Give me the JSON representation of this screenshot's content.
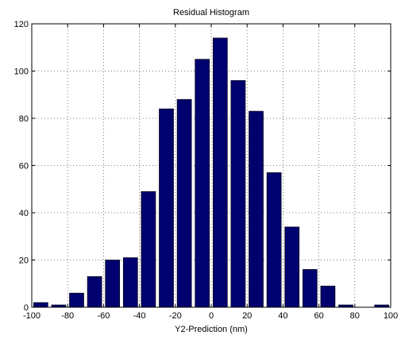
{
  "chart_data": {
    "type": "bar",
    "title": "Residual Histogram",
    "xlabel": "Y2-Prediction (nm)",
    "ylabel": "",
    "xlim": [
      -100,
      100
    ],
    "ylim": [
      0,
      120
    ],
    "grid": true,
    "bar_color": "#00006e",
    "x_ticks": [
      -100,
      -80,
      -60,
      -40,
      -20,
      0,
      20,
      40,
      60,
      80,
      100
    ],
    "y_ticks": [
      0,
      20,
      40,
      60,
      80,
      100,
      120
    ],
    "x": [
      -95,
      -85,
      -75,
      -65,
      -55,
      -45,
      -35,
      -25,
      -15,
      -5,
      5,
      15,
      25,
      35,
      45,
      55,
      65,
      75,
      85,
      95
    ],
    "values": [
      2,
      1,
      6,
      13,
      20,
      21,
      49,
      84,
      88,
      105,
      114,
      96,
      83,
      57,
      34,
      16,
      9,
      1,
      0,
      1
    ]
  }
}
